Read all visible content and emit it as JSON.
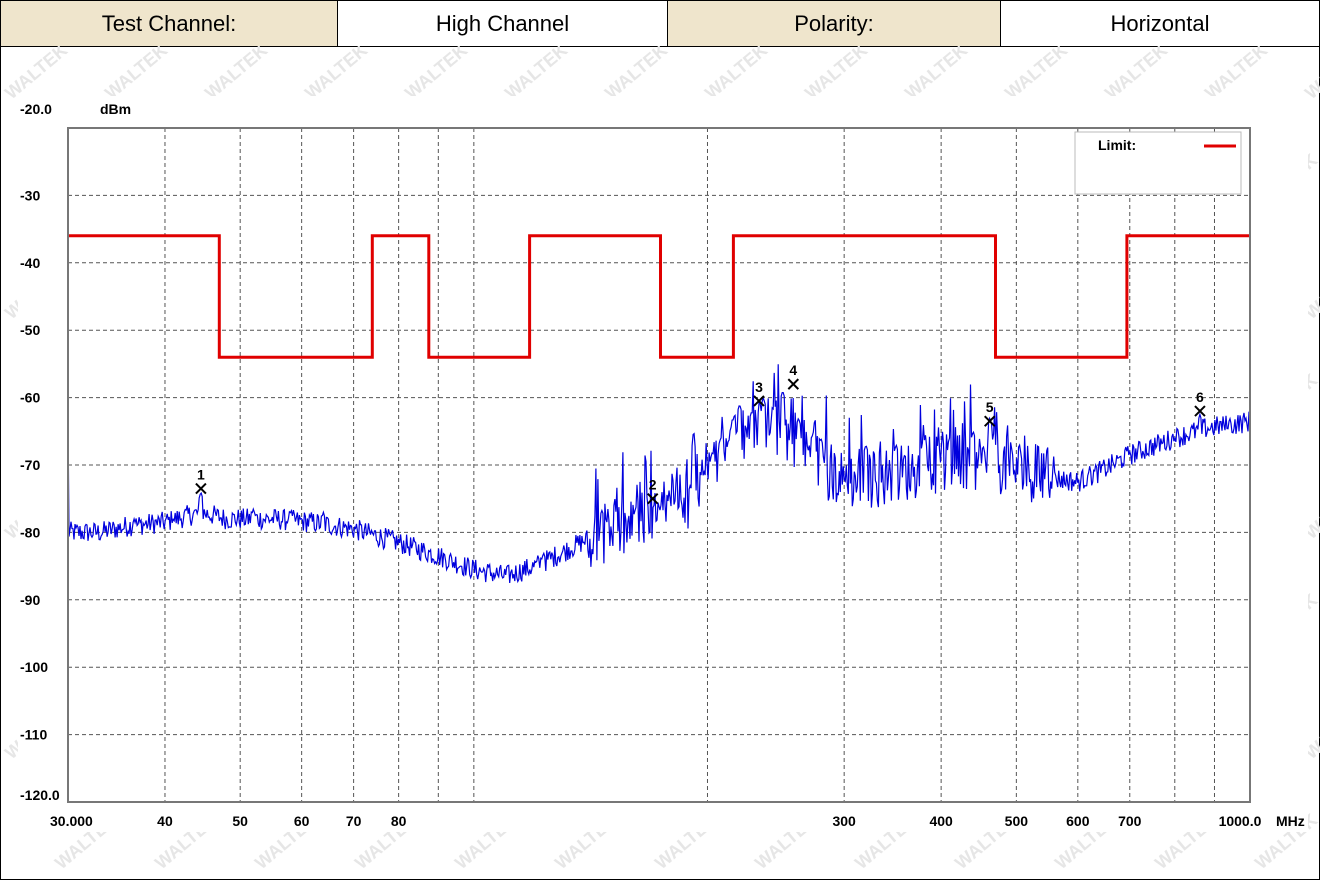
{
  "header": {
    "channel_label": "Test Channel:",
    "channel_value": "High Channel",
    "polarity_label": "Polarity:",
    "polarity_value": "Horizontal"
  },
  "watermark": "WALTEK",
  "chart_data": {
    "type": "line",
    "ylabel": "dBm",
    "xlabel": "MHz",
    "x_scale": "log",
    "xlim": [
      30,
      1000
    ],
    "ylim": [
      -120,
      -20
    ],
    "y_ticks": [
      {
        "value": -20,
        "label": "-20.0"
      },
      {
        "value": -30,
        "label": "-30"
      },
      {
        "value": -40,
        "label": "-40"
      },
      {
        "value": -50,
        "label": "-50"
      },
      {
        "value": -60,
        "label": "-60"
      },
      {
        "value": -70,
        "label": "-70"
      },
      {
        "value": -80,
        "label": "-80"
      },
      {
        "value": -90,
        "label": "-90"
      },
      {
        "value": -100,
        "label": "-100"
      },
      {
        "value": -110,
        "label": "-110"
      },
      {
        "value": -120,
        "label": "-120.0"
      }
    ],
    "x_ticks": [
      {
        "value": 30,
        "label": "30.000"
      },
      {
        "value": 40,
        "label": "40"
      },
      {
        "value": 50,
        "label": "50"
      },
      {
        "value": 60,
        "label": "60"
      },
      {
        "value": 70,
        "label": "70"
      },
      {
        "value": 80,
        "label": "80"
      },
      {
        "value": 300,
        "label": "300"
      },
      {
        "value": 400,
        "label": "400"
      },
      {
        "value": 500,
        "label": "500"
      },
      {
        "value": 600,
        "label": "600"
      },
      {
        "value": 700,
        "label": "700"
      },
      {
        "value": 1000,
        "label": "1000.0"
      }
    ],
    "x_gridlines": [
      30,
      40,
      50,
      60,
      70,
      80,
      90,
      100,
      200,
      300,
      400,
      500,
      600,
      700,
      800,
      900,
      1000
    ],
    "grid": true,
    "legend": {
      "label": "Limit:",
      "placement": "top-right"
    },
    "limit_color": "#e00000",
    "trace_color": "#0000dd",
    "limit_line": {
      "name": "Limit:",
      "points": [
        [
          30,
          -36
        ],
        [
          47,
          -36
        ],
        [
          47,
          -54
        ],
        [
          74,
          -54
        ],
        [
          74,
          -36
        ],
        [
          87.5,
          -36
        ],
        [
          87.5,
          -54
        ],
        [
          118,
          -54
        ],
        [
          118,
          -36
        ],
        [
          174,
          -36
        ],
        [
          174,
          -54
        ],
        [
          216,
          -54
        ],
        [
          216,
          -36
        ],
        [
          470,
          -36
        ],
        [
          470,
          -54
        ],
        [
          694,
          -54
        ],
        [
          694,
          -36
        ],
        [
          1000,
          -36
        ]
      ]
    },
    "trace": {
      "anchors": [
        [
          30,
          -80
        ],
        [
          33,
          -80
        ],
        [
          36,
          -79
        ],
        [
          40,
          -78.5
        ],
        [
          44.5,
          -77
        ],
        [
          48,
          -78
        ],
        [
          55,
          -78
        ],
        [
          62,
          -78.5
        ],
        [
          70,
          -79.5
        ],
        [
          80,
          -81.5
        ],
        [
          90,
          -83.5
        ],
        [
          100,
          -85.5
        ],
        [
          110,
          -86.5
        ],
        [
          120,
          -85
        ],
        [
          130,
          -83
        ],
        [
          140,
          -81
        ],
        [
          150,
          -80
        ],
        [
          160,
          -79.5
        ],
        [
          175,
          -78
        ],
        [
          190,
          -75
        ],
        [
          205,
          -70
        ],
        [
          220,
          -66
        ],
        [
          240,
          -64
        ],
        [
          260,
          -66
        ],
        [
          280,
          -70
        ],
        [
          300,
          -72.5
        ],
        [
          330,
          -72
        ],
        [
          360,
          -71
        ],
        [
          400,
          -70
        ],
        [
          440,
          -69.5
        ],
        [
          480,
          -70
        ],
        [
          520,
          -71
        ],
        [
          560,
          -72
        ],
        [
          600,
          -72.5
        ],
        [
          640,
          -71
        ],
        [
          700,
          -68.5
        ],
        [
          800,
          -66
        ],
        [
          880,
          -64.5
        ],
        [
          950,
          -64
        ],
        [
          1000,
          -63.5
        ]
      ],
      "spikes": [
        [
          36.5,
          -78
        ],
        [
          41,
          -78
        ],
        [
          44.5,
          -74
        ],
        [
          52,
          -76.5
        ],
        [
          58,
          -77
        ],
        [
          64,
          -77
        ],
        [
          74,
          -80
        ],
        [
          123,
          -83
        ],
        [
          148,
          -78
        ],
        [
          162,
          -76
        ],
        [
          172,
          -78
        ],
        [
          182,
          -75
        ],
        [
          190,
          -73
        ],
        [
          198,
          -71
        ],
        [
          203,
          -68
        ],
        [
          208,
          -66
        ],
        [
          215,
          -64
        ],
        [
          220,
          -61
        ],
        [
          228,
          -62
        ],
        [
          236,
          -60
        ],
        [
          244,
          -61
        ],
        [
          250,
          -59
        ],
        [
          262,
          -63
        ],
        [
          280,
          -66
        ],
        [
          320,
          -67
        ],
        [
          350,
          -67
        ],
        [
          380,
          -66
        ],
        [
          410,
          -66
        ],
        [
          440,
          -65
        ],
        [
          462,
          -63
        ],
        [
          505,
          -70
        ],
        [
          560,
          -71
        ],
        [
          620,
          -71
        ],
        [
          700,
          -68
        ],
        [
          800,
          -66
        ],
        [
          862,
          -62.5
        ],
        [
          940,
          -64
        ]
      ]
    },
    "markers": [
      {
        "label": "1",
        "x": 44.5,
        "y": -73.5
      },
      {
        "label": "2",
        "x": 170,
        "y": -75
      },
      {
        "label": "3",
        "x": 233,
        "y": -60.5
      },
      {
        "label": "4",
        "x": 258,
        "y": -58
      },
      {
        "label": "5",
        "x": 462,
        "y": -63.5
      },
      {
        "label": "6",
        "x": 862,
        "y": -62
      }
    ]
  }
}
